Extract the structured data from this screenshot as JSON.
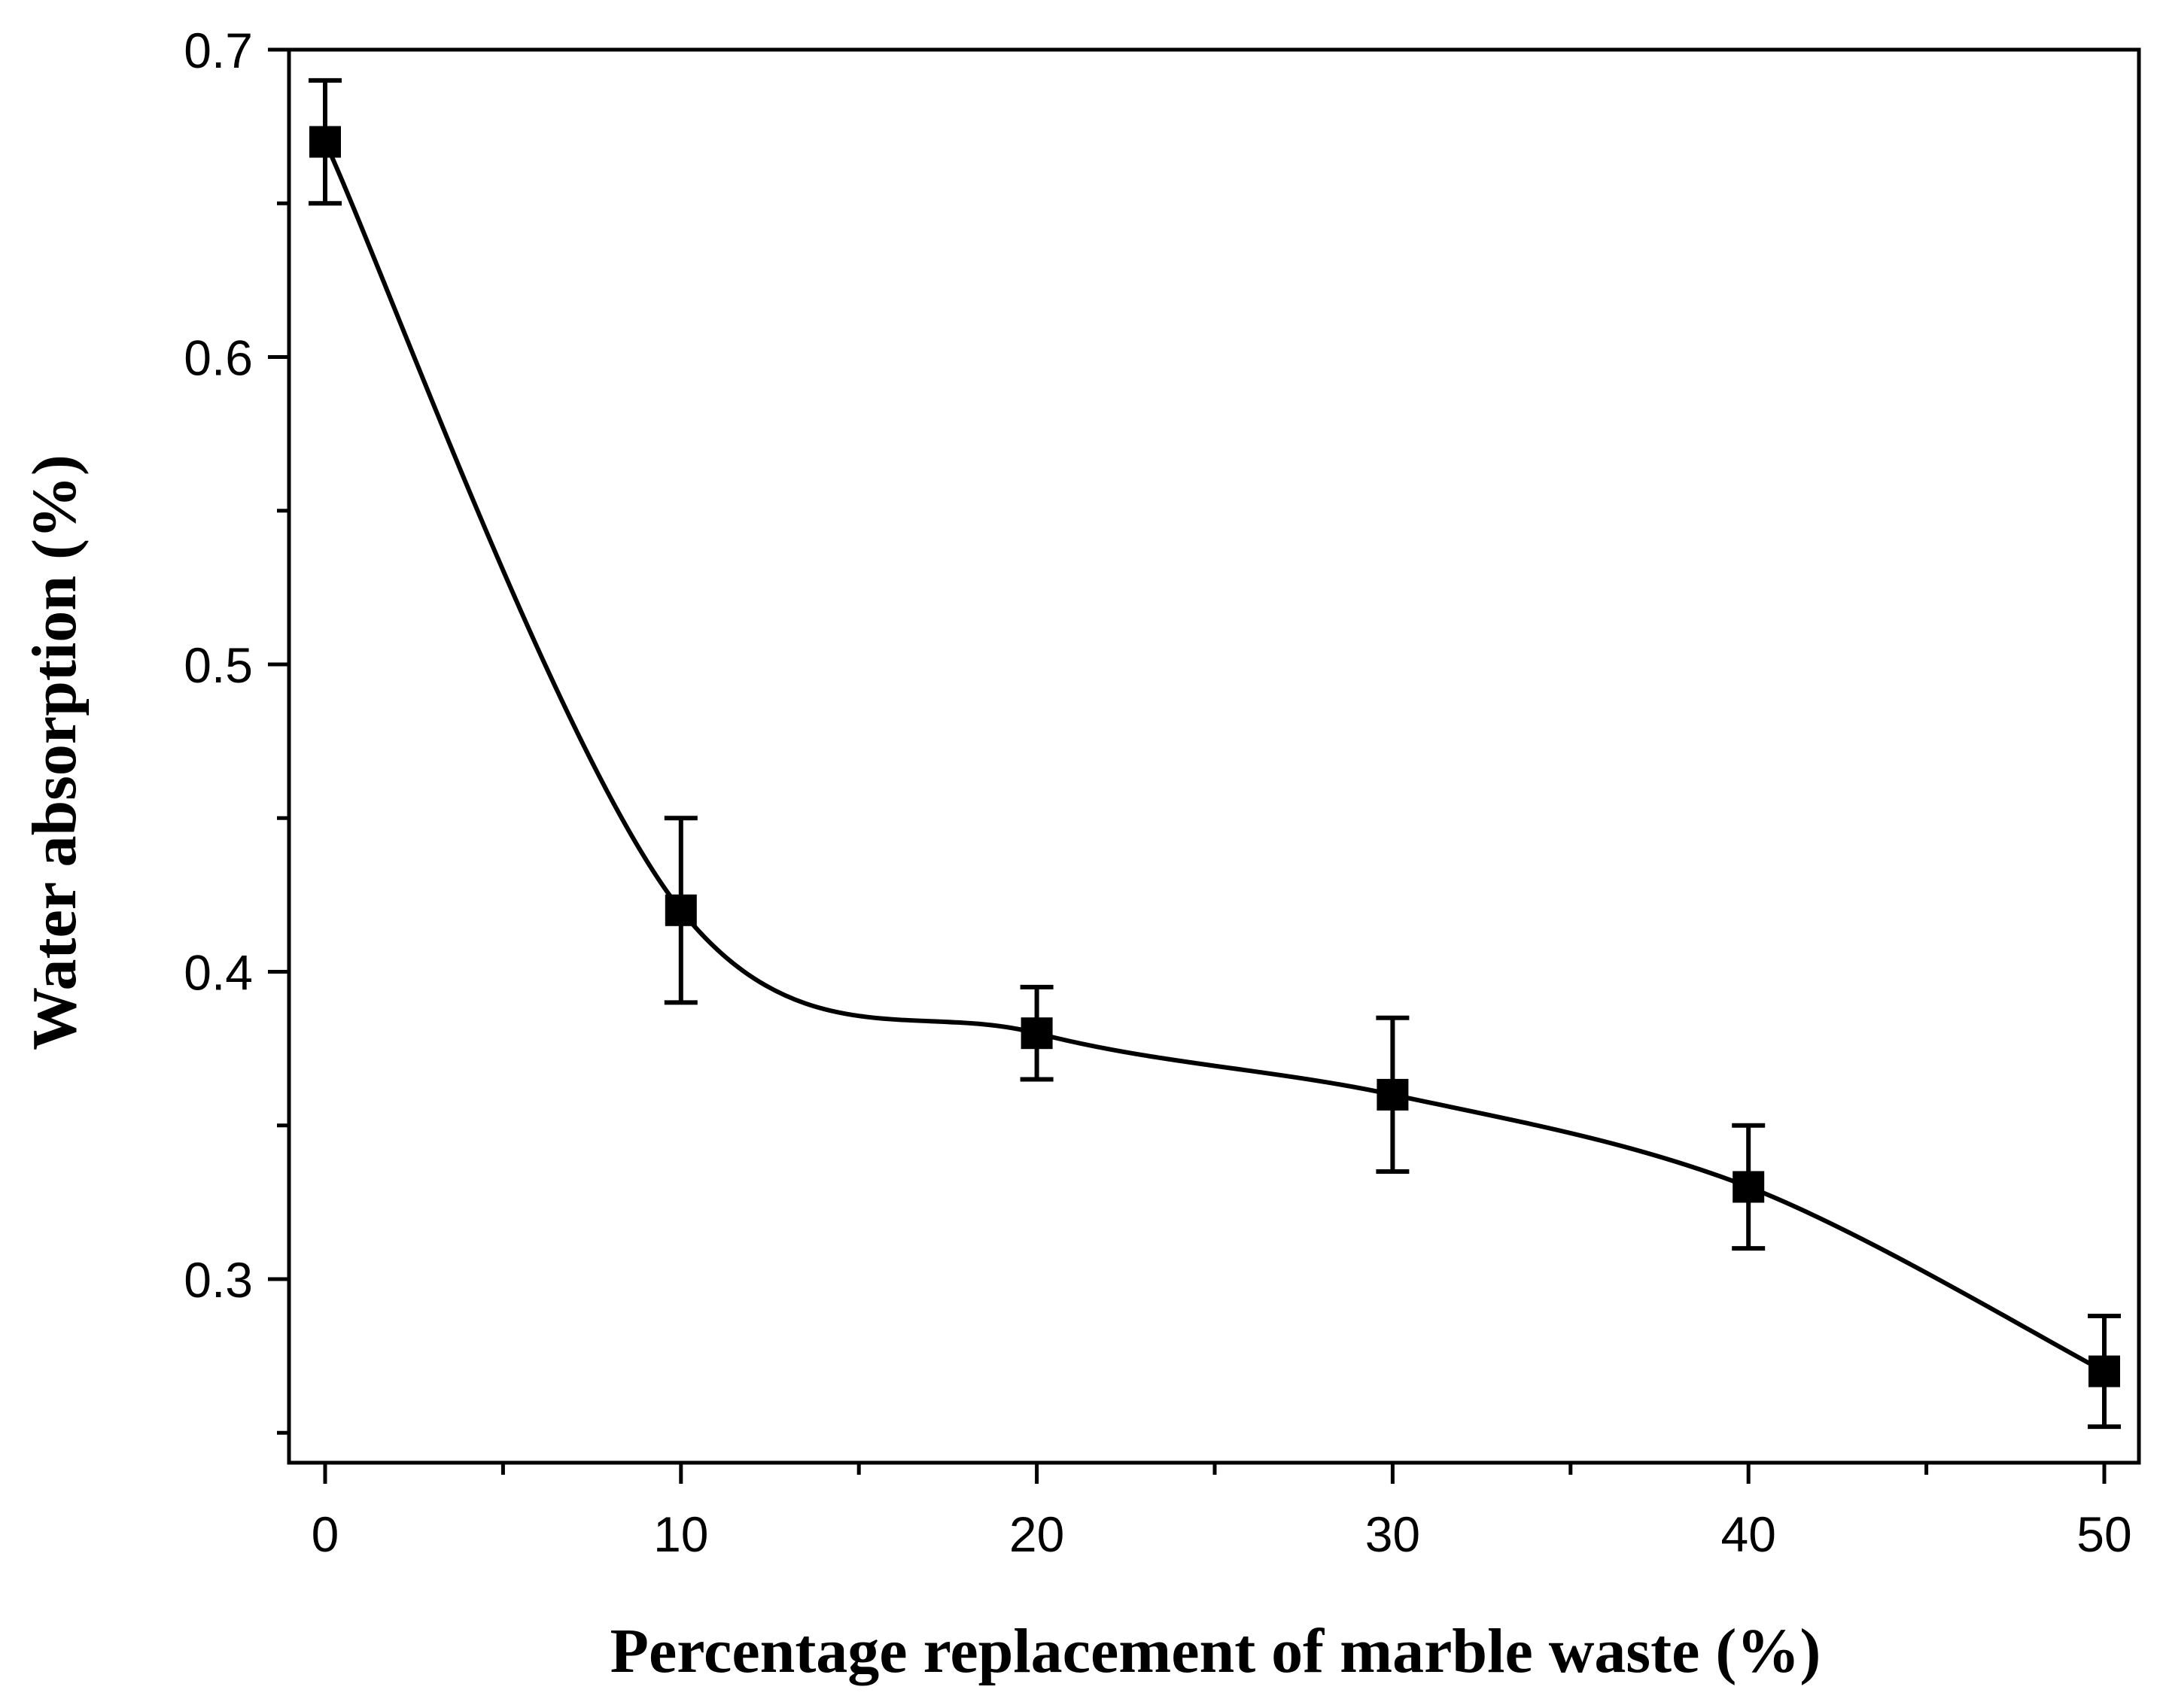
{
  "chart_data": {
    "type": "line",
    "title": "",
    "xlabel": "Percentage replacement of marble waste (%)",
    "ylabel": "Water absorption (%)",
    "xlim": [
      -1,
      51
    ],
    "ylim": [
      0.24,
      0.7
    ],
    "x_ticks": [
      0,
      10,
      20,
      30,
      40,
      50
    ],
    "x_tick_labels": [
      "0",
      "10",
      "20",
      "30",
      "40",
      "50"
    ],
    "x_minor_ticks": [
      5,
      15,
      25,
      35,
      45
    ],
    "y_ticks": [
      0.3,
      0.4,
      0.5,
      0.6,
      0.7
    ],
    "y_tick_labels": [
      "0.3",
      "0.4",
      "0.5",
      "0.6",
      "0.7"
    ],
    "grid": false,
    "legend": "none",
    "series": [
      {
        "name": "Water absorption",
        "marker": "square",
        "line": "smooth",
        "color": "#000000",
        "x": [
          0,
          10,
          20,
          30,
          40,
          50
        ],
        "values": [
          0.67,
          0.42,
          0.38,
          0.36,
          0.33,
          0.27
        ],
        "error_upper": [
          0.69,
          0.45,
          0.395,
          0.385,
          0.35,
          0.288
        ],
        "error_lower": [
          0.65,
          0.39,
          0.365,
          0.335,
          0.31,
          0.252
        ]
      }
    ]
  }
}
